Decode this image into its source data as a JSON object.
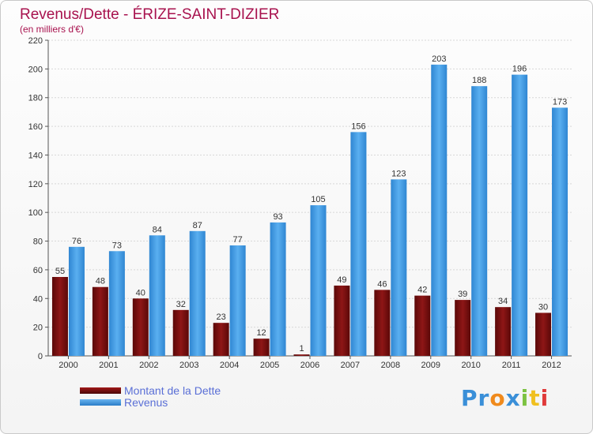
{
  "chart_data": {
    "type": "bar",
    "title": "Revenus/Dette - ÉRIZE-SAINT-DIZIER",
    "subtitle": "(en milliers d'€)",
    "categories": [
      "2000",
      "2001",
      "2002",
      "2003",
      "2004",
      "2005",
      "2006",
      "2007",
      "2008",
      "2009",
      "2010",
      "2011",
      "2012"
    ],
    "series": [
      {
        "name": "Montant de la Dette",
        "color": "#7a1010",
        "values": [
          55,
          48,
          40,
          32,
          23,
          12,
          1,
          49,
          46,
          42,
          39,
          34,
          30
        ]
      },
      {
        "name": "Revenus",
        "color": "#3f97e0",
        "values": [
          76,
          73,
          84,
          87,
          77,
          93,
          105,
          156,
          123,
          203,
          188,
          196,
          173
        ]
      }
    ],
    "ylim": [
      0,
      220
    ],
    "yticks": [
      0,
      20,
      40,
      60,
      80,
      100,
      120,
      140,
      160,
      180,
      200,
      220
    ],
    "grid": true,
    "legend": "bottom-left"
  },
  "logo": {
    "letters": [
      {
        "char": "P",
        "color": "#3a8fd8"
      },
      {
        "char": "r",
        "color": "#3a8fd8"
      },
      {
        "char": "o",
        "color": "#f08a1c"
      },
      {
        "char": "x",
        "color": "#3a8fd8"
      },
      {
        "char": "i",
        "color": "#7cc242"
      },
      {
        "char": "t",
        "color": "#f0c020"
      },
      {
        "char": "i",
        "color": "#e03a3a"
      }
    ]
  }
}
